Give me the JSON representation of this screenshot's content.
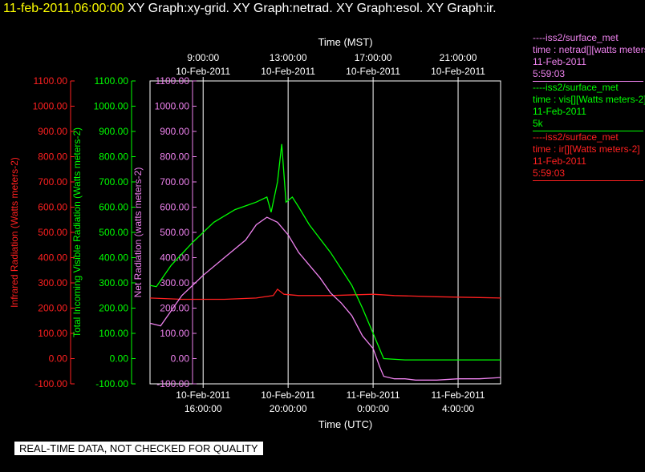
{
  "title": {
    "timestamp": "11-feb-2011,06:00:00",
    "graphs": "XY Graph:xy-grid.  XY Graph:netrad.  XY Graph:esol.  XY Graph:ir."
  },
  "footer": "REAL-TIME DATA, NOT CHECKED FOR QUALITY",
  "colors": {
    "ir": "#ff2020",
    "vis": "#00ff00",
    "net": "#ee82ee",
    "grid": "#ffffff"
  },
  "legend": [
    {
      "lines": [
        "----iss2/surface_met",
        "time : netrad[][watts meters-2]",
        "11-Feb-2011",
        "5:59:03"
      ],
      "color": "#ee82ee"
    },
    {
      "lines": [
        "----iss2/surface_met",
        "time : vis[][Watts meters-2]",
        "11-Feb-2011",
        "5k"
      ],
      "color": "#00ff00"
    },
    {
      "lines": [
        "----iss2/surface_met",
        "time : ir[][Watts meters-2]",
        "11-Feb-2011",
        "5:59:03"
      ],
      "color": "#ff2020"
    }
  ],
  "chart_data": {
    "type": "line",
    "xlabel_top": "Time (MST)",
    "xlabel_bottom": "Time (UTC)",
    "x_hours_range": [
      13.5,
      30.0
    ],
    "x_ticks_hours": [
      16,
      20,
      24,
      28
    ],
    "top_ticks": [
      [
        "9:00:00",
        "10-Feb-2011"
      ],
      [
        "13:00:00",
        "10-Feb-2011"
      ],
      [
        "17:00:00",
        "10-Feb-2011"
      ],
      [
        "21:00:00",
        "10-Feb-2011"
      ]
    ],
    "bottom_ticks": [
      [
        "10-Feb-2011",
        "16:00:00"
      ],
      [
        "10-Feb-2011",
        "20:00:00"
      ],
      [
        "11-Feb-2011",
        "0:00:00"
      ],
      [
        "11-Feb-2011",
        "4:00:00"
      ]
    ],
    "ylim": [
      -100,
      1100
    ],
    "y_ticks": [
      "-100.00",
      "0.00",
      "100.00",
      "200.00",
      "300.00",
      "400.00",
      "500.00",
      "600.00",
      "700.00",
      "800.00",
      "900.00",
      "1000.00",
      "1100.00"
    ],
    "axes": [
      {
        "label": "Infrared Radiation (Watts meters-2)",
        "color": "#ff2020"
      },
      {
        "label": "Total Incoming Visible Radiation (Watts meters-2)",
        "color": "#00ff00"
      },
      {
        "label": "Net Radiation (watts meters-2)",
        "color": "#ee82ee"
      }
    ],
    "grid": true,
    "series": [
      {
        "name": "ir",
        "color": "#ff2020",
        "x": [
          13.5,
          15,
          17,
          18.5,
          19.3,
          19.5,
          19.8,
          20.5,
          22,
          24,
          25,
          27,
          29,
          30.0
        ],
        "y": [
          240,
          235,
          235,
          240,
          250,
          275,
          255,
          250,
          250,
          255,
          250,
          245,
          242,
          240
        ]
      },
      {
        "name": "vis",
        "color": "#00ff00",
        "x": [
          13.5,
          13.8,
          14.5,
          15.5,
          16.5,
          17.5,
          18.5,
          19.0,
          19.2,
          19.5,
          19.7,
          19.9,
          20.2,
          20.5,
          21.0,
          22.0,
          23.0,
          23.5,
          24.0,
          24.5,
          25.5,
          28,
          30.0
        ],
        "y": [
          290,
          285,
          370,
          460,
          540,
          590,
          620,
          640,
          580,
          700,
          850,
          620,
          640,
          600,
          530,
          420,
          290,
          200,
          100,
          0,
          -5,
          -5,
          -5
        ]
      },
      {
        "name": "net",
        "color": "#ee82ee",
        "x": [
          13.5,
          14.0,
          15.0,
          16.0,
          17.0,
          18.0,
          18.5,
          19.0,
          19.5,
          20.0,
          20.5,
          21.0,
          21.5,
          22.0,
          22.5,
          23.0,
          23.5,
          24.0,
          24.3,
          24.5,
          25.0,
          25.5,
          26,
          27,
          28,
          29,
          30.0
        ],
        "y": [
          140,
          130,
          250,
          330,
          400,
          470,
          530,
          560,
          540,
          490,
          420,
          370,
          320,
          260,
          220,
          170,
          90,
          40,
          -30,
          -70,
          -80,
          -80,
          -85,
          -85,
          -80,
          -80,
          -75
        ]
      }
    ]
  }
}
